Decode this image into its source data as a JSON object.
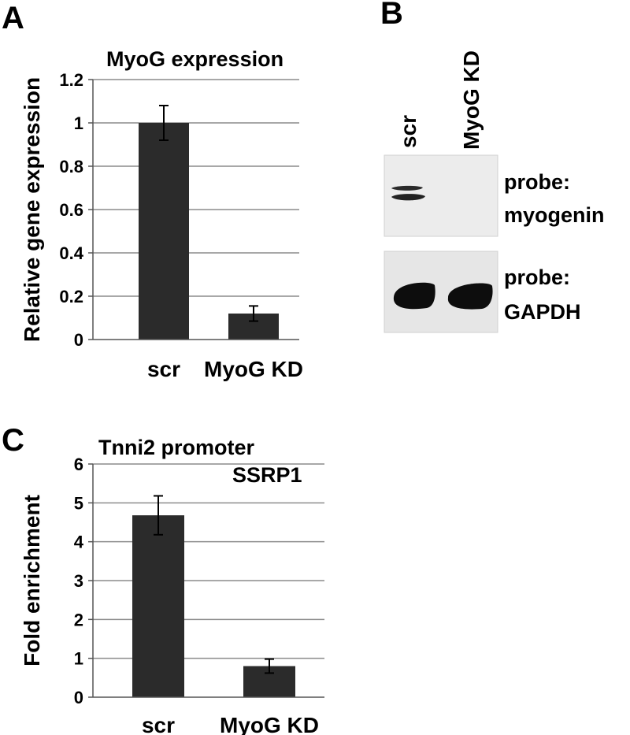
{
  "panel_letters": {
    "a": "A",
    "b": "B",
    "c": "C"
  },
  "chart_data": [
    {
      "type": "bar",
      "title": "MyoG   expression",
      "categories": [
        "scr",
        "MyoG KD"
      ],
      "values": [
        1.0,
        0.12
      ],
      "error": [
        0.08,
        0.035
      ],
      "ylabel": "Relative gene expression",
      "xlabel": "",
      "ylim": [
        0,
        1.2
      ],
      "yticks": [
        "0",
        "0.2",
        "0.4",
        "0.6",
        "0.8",
        "1",
        "1.2"
      ],
      "grid": true,
      "bar_color": "#2b2b2b"
    },
    {
      "type": "bar",
      "title": "Tnni2 promoter",
      "annotation": "SSRP1",
      "categories": [
        "scr",
        "MyoG KD"
      ],
      "values": [
        4.68,
        0.8
      ],
      "error": [
        0.5,
        0.18
      ],
      "ylabel": "Fold enrichment",
      "xlabel": "",
      "ylim": [
        0,
        6
      ],
      "yticks": [
        "0",
        "1",
        "2",
        "3",
        "4",
        "5",
        "6"
      ],
      "grid": true,
      "bar_color": "#2b2b2b"
    }
  ],
  "blot": {
    "lanes": [
      "scr",
      "MyoG KD"
    ],
    "top_label_line1": "probe:",
    "top_label_line2": "myogenin",
    "bottom_label_line1": "probe:",
    "bottom_label_line2": "GAPDH"
  }
}
